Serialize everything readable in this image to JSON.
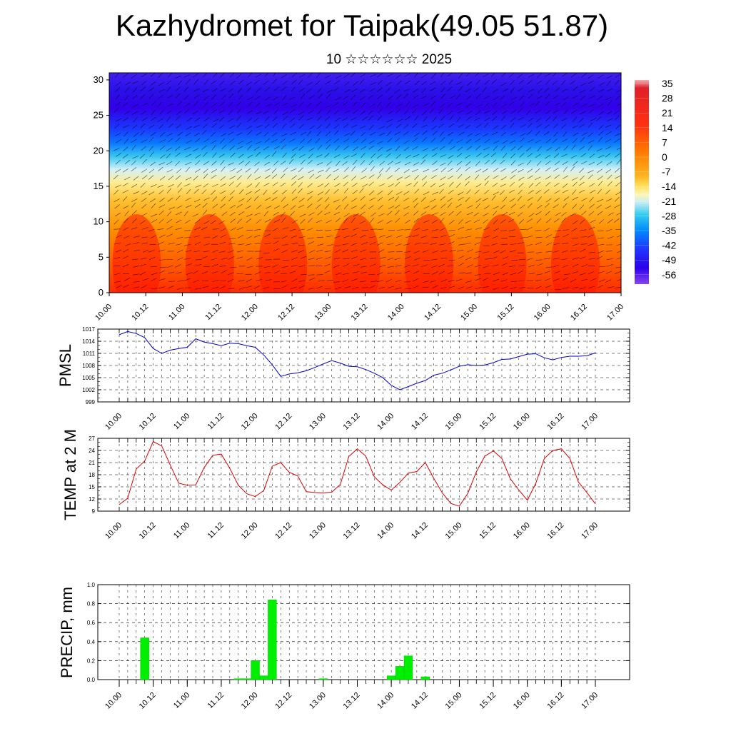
{
  "header": {
    "title": "Kazhydromet for Taipak(49.05 51.87)",
    "subtitle": "10 ☆☆☆☆☆☆ 2025"
  },
  "time_axis": {
    "ticks": [
      "10.00",
      "10.12",
      "11.00",
      "11.12",
      "12.00",
      "12.12",
      "13.00",
      "13.12",
      "14.00",
      "14.12",
      "15.00",
      "15.12",
      "16.00",
      "16.12",
      "17.00"
    ]
  },
  "colors": {
    "pressure": "#0000cc",
    "temperature": "#dd0000",
    "precip": "#00ee00"
  },
  "chart_data": [
    {
      "type": "heatmap",
      "title": "Kazhydromet for Taipak(49.05 51.87)",
      "x": "time (days 10.00 – 17.00)",
      "ylim": [
        0,
        31
      ],
      "y_ticks": [
        "0",
        "5",
        "10",
        "15",
        "20",
        "25",
        "30"
      ],
      "colorbar": {
        "labels": [
          "35",
          "28",
          "21",
          "14",
          "7",
          "0",
          "-7",
          "-14",
          "-21",
          "-28",
          "-35",
          "-42",
          "-49",
          "-56"
        ],
        "range": [
          -63,
          38
        ]
      },
      "overlay": "wind vectors"
    },
    {
      "type": "line",
      "ylabel": "PMSL",
      "ylim": [
        999,
        1017
      ],
      "y_ticks": [
        "1017",
        "1014",
        "1011",
        "1008",
        "1005",
        "1002",
        "999"
      ],
      "x": [
        10.0,
        10.125,
        10.25,
        10.375,
        10.5,
        10.625,
        10.75,
        10.875,
        11.0,
        11.125,
        11.25,
        11.375,
        11.5,
        11.625,
        11.75,
        11.875,
        12.0,
        12.125,
        12.25,
        12.375,
        12.5,
        12.625,
        12.75,
        12.875,
        13.0,
        13.125,
        13.25,
        13.375,
        13.5,
        13.625,
        13.75,
        13.875,
        14.0,
        14.125,
        14.25,
        14.375,
        14.5,
        14.625,
        14.75,
        14.875,
        15.0,
        15.125,
        15.25,
        15.375,
        15.5,
        15.625,
        15.75,
        15.875,
        16.0,
        16.125,
        16.25,
        16.375,
        16.5,
        16.625,
        16.75,
        16.875,
        17.0
      ],
      "series": [
        {
          "values": [
            1015.6,
            1016.4,
            1015.9,
            1014.9,
            1012.2,
            1011.0,
            1011.8,
            1012.2,
            1012.5,
            1014.6,
            1013.8,
            1013.4,
            1012.9,
            1013.5,
            1013.4,
            1012.9,
            1012.5,
            1010.6,
            1008.2,
            1005.3,
            1005.9,
            1006.2,
            1006.7,
            1007.5,
            1008.4,
            1009.2,
            1008.6,
            1007.8,
            1007.7,
            1007.0,
            1006.1,
            1005.0,
            1003.1,
            1002.0,
            1002.8,
            1003.6,
            1004.3,
            1005.6,
            1006.1,
            1006.9,
            1007.8,
            1008.2,
            1008.0,
            1008.1,
            1008.7,
            1009.5,
            1009.6,
            1010.2,
            1010.8,
            1010.9,
            1009.9,
            1009.4,
            1010.0,
            1010.3,
            1010.3,
            1010.4,
            1011.1
          ]
        }
      ]
    },
    {
      "type": "line",
      "ylabel": "TEMP at 2 M",
      "ylim": [
        9,
        27
      ],
      "y_ticks": [
        "27",
        "24",
        "21",
        "18",
        "15",
        "12",
        "9"
      ],
      "x": [
        10.0,
        10.125,
        10.25,
        10.375,
        10.5,
        10.625,
        10.75,
        10.875,
        11.0,
        11.125,
        11.25,
        11.375,
        11.5,
        11.625,
        11.75,
        11.875,
        12.0,
        12.125,
        12.25,
        12.375,
        12.5,
        12.625,
        12.75,
        12.875,
        13.0,
        13.125,
        13.25,
        13.375,
        13.5,
        13.625,
        13.75,
        13.875,
        14.0,
        14.125,
        14.25,
        14.375,
        14.5,
        14.625,
        14.75,
        14.875,
        15.0,
        15.125,
        15.25,
        15.375,
        15.5,
        15.625,
        15.75,
        15.875,
        16.0,
        16.125,
        16.25,
        16.375,
        16.5,
        16.625,
        16.75,
        16.875,
        17.0
      ],
      "series": [
        {
          "values": [
            10.6,
            12.2,
            19.4,
            21.4,
            26.2,
            25.1,
            20.4,
            15.9,
            15.4,
            15.5,
            19.8,
            22.8,
            23.1,
            19.6,
            15.4,
            13.3,
            12.6,
            14.1,
            20.1,
            21.0,
            18.6,
            17.7,
            13.8,
            13.6,
            13.5,
            13.7,
            15.6,
            22.5,
            24.4,
            22.6,
            17.5,
            15.5,
            14.2,
            16.1,
            18.4,
            18.8,
            21.0,
            17.1,
            13.5,
            10.9,
            10.2,
            13.4,
            18.7,
            22.6,
            23.9,
            22.0,
            17.0,
            14.2,
            11.7,
            15.9,
            22.0,
            24.0,
            24.4,
            22.0,
            16.2,
            13.6,
            10.8
          ]
        }
      ]
    },
    {
      "type": "bar",
      "ylabel": "PRECIP, mm",
      "ylim": [
        0,
        1.0
      ],
      "y_ticks": [
        "1.0",
        "0.8",
        "0.6",
        "0.4",
        "0.2",
        "0.0"
      ],
      "x": [
        10.375,
        11.75,
        11.875,
        12.0,
        12.125,
        12.25,
        12.375,
        13.0,
        14.0,
        14.125,
        14.25,
        14.5
      ],
      "values": [
        0.44,
        0.01,
        0.01,
        0.2,
        0.04,
        0.84,
        0.0,
        0.01,
        0.04,
        0.14,
        0.25,
        0.03
      ]
    }
  ]
}
